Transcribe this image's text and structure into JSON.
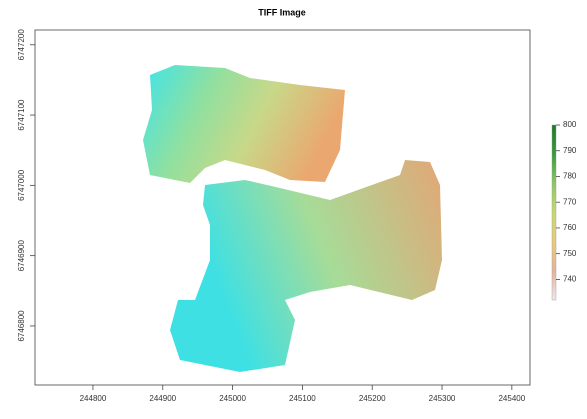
{
  "chart_data": {
    "type": "raster",
    "title": "TIFF Image",
    "xlim": [
      244717,
      245426
    ],
    "xticks": [
      244800,
      244900,
      245000,
      245100,
      245200,
      245300,
      245400
    ],
    "ylim": [
      6746716,
      6747221
    ],
    "yticks": [
      6746800,
      6746900,
      6747000,
      6747100,
      6747200
    ],
    "colorbar": {
      "lim": [
        732,
        800
      ],
      "ticks": [
        740,
        750,
        760,
        770,
        780,
        790,
        800
      ],
      "colors": [
        "#f2e6ec",
        "#e6b49a",
        "#e8cc7a",
        "#c8d870",
        "#8cc864",
        "#3a9a3a",
        "#1e7a2a"
      ]
    }
  }
}
